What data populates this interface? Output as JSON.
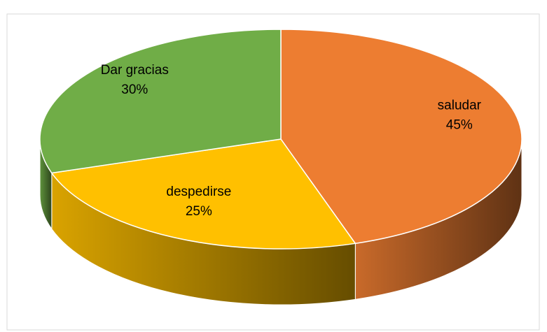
{
  "chart_data": {
    "type": "pie",
    "categories": [
      "saludar",
      "despedirse",
      "Dar gracias"
    ],
    "values": [
      45,
      25,
      30
    ],
    "value_labels": [
      "45%",
      "25%",
      "30%"
    ],
    "colors": [
      "#ED7D31",
      "#FFC000",
      "#70AD47"
    ]
  }
}
